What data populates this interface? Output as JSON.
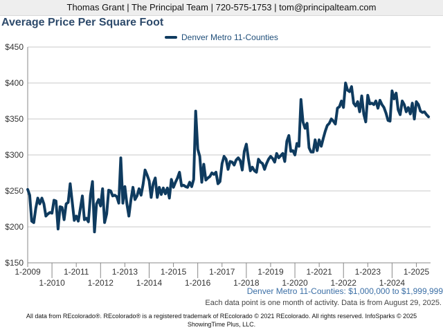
{
  "header": {
    "contact": "Thomas Grant | The Principal Team | 720-575-1753 | tom@principalteam.com"
  },
  "colors": {
    "series": "#0f3b5f",
    "title": "#2d4a6b",
    "header_bg": "#eeeeee"
  },
  "chart_data": {
    "type": "line",
    "title": "Average Price Per Square Foot",
    "xlabel": "",
    "ylabel": "",
    "ylim": [
      150,
      450
    ],
    "yticks": [
      150,
      200,
      250,
      300,
      350,
      400,
      450
    ],
    "ytick_labels": [
      "$150",
      "$200",
      "$250",
      "$300",
      "$350",
      "$400",
      "$450"
    ],
    "xlim": [
      "2009-01",
      "2025-08"
    ],
    "xticks": [
      {
        "date": "2009-01",
        "label": "1-2009",
        "row": 0
      },
      {
        "date": "2010-01",
        "label": "1-2010",
        "row": 1
      },
      {
        "date": "2011-01",
        "label": "1-2011",
        "row": 0
      },
      {
        "date": "2012-01",
        "label": "1-2012",
        "row": 1
      },
      {
        "date": "2013-01",
        "label": "1-2013",
        "row": 0
      },
      {
        "date": "2014-01",
        "label": "1-2014",
        "row": 1
      },
      {
        "date": "2015-01",
        "label": "1-2015",
        "row": 0
      },
      {
        "date": "2016-01",
        "label": "1-2016",
        "row": 1
      },
      {
        "date": "2017-01",
        "label": "1-2017",
        "row": 0
      },
      {
        "date": "2018-01",
        "label": "1-2018",
        "row": 1
      },
      {
        "date": "2019-01",
        "label": "1-2019",
        "row": 0
      },
      {
        "date": "2020-01",
        "label": "1-2020",
        "row": 1
      },
      {
        "date": "2021-01",
        "label": "1-2021",
        "row": 0
      },
      {
        "date": "2022-01",
        "label": "1-2022",
        "row": 1
      },
      {
        "date": "2023-01",
        "label": "1-2023",
        "row": 0
      },
      {
        "date": "2024-01",
        "label": "1-2024",
        "row": 1
      },
      {
        "date": "2025-01",
        "label": "1-2025",
        "row": 0
      }
    ],
    "grid": true,
    "legend_position": "top-center",
    "series": [
      {
        "name": "Denver Metro 11-Counties",
        "points": [
          [
            "2009-01",
            252
          ],
          [
            "2009-02",
            244
          ],
          [
            "2009-03",
            208
          ],
          [
            "2009-04",
            206
          ],
          [
            "2009-05",
            226
          ],
          [
            "2009-06",
            240
          ],
          [
            "2009-07",
            232
          ],
          [
            "2009-08",
            240
          ],
          [
            "2009-09",
            232
          ],
          [
            "2009-10",
            215
          ],
          [
            "2009-11",
            218
          ],
          [
            "2009-12",
            220
          ],
          [
            "2010-01",
            219
          ],
          [
            "2010-02",
            237
          ],
          [
            "2010-03",
            236
          ],
          [
            "2010-04",
            197
          ],
          [
            "2010-05",
            228
          ],
          [
            "2010-06",
            227
          ],
          [
            "2010-07",
            210
          ],
          [
            "2010-08",
            232
          ],
          [
            "2010-09",
            234
          ],
          [
            "2010-10",
            260
          ],
          [
            "2010-11",
            235
          ],
          [
            "2010-12",
            209
          ],
          [
            "2011-01",
            215
          ],
          [
            "2011-02",
            208
          ],
          [
            "2011-03",
            225
          ],
          [
            "2011-04",
            243
          ],
          [
            "2011-05",
            210
          ],
          [
            "2011-06",
            212
          ],
          [
            "2011-07",
            207
          ],
          [
            "2011-08",
            244
          ],
          [
            "2011-09",
            263
          ],
          [
            "2011-10",
            193
          ],
          [
            "2011-11",
            232
          ],
          [
            "2011-12",
            238
          ],
          [
            "2012-01",
            229
          ],
          [
            "2012-02",
            253
          ],
          [
            "2012-03",
            206
          ],
          [
            "2012-04",
            218
          ],
          [
            "2012-05",
            251
          ],
          [
            "2012-06",
            250
          ],
          [
            "2012-07",
            243
          ],
          [
            "2012-08",
            244
          ],
          [
            "2012-09",
            242
          ],
          [
            "2012-10",
            233
          ],
          [
            "2012-11",
            296
          ],
          [
            "2012-12",
            233
          ],
          [
            "2013-01",
            256
          ],
          [
            "2013-02",
            232
          ],
          [
            "2013-03",
            215
          ],
          [
            "2013-04",
            238
          ],
          [
            "2013-05",
            255
          ],
          [
            "2013-06",
            238
          ],
          [
            "2013-07",
            243
          ],
          [
            "2013-08",
            253
          ],
          [
            "2013-09",
            244
          ],
          [
            "2013-10",
            259
          ],
          [
            "2013-11",
            279
          ],
          [
            "2013-12",
            272
          ],
          [
            "2014-01",
            264
          ],
          [
            "2014-02",
            241
          ],
          [
            "2014-03",
            260
          ],
          [
            "2014-04",
            268
          ],
          [
            "2014-05",
            241
          ],
          [
            "2014-06",
            255
          ],
          [
            "2014-07",
            245
          ],
          [
            "2014-08",
            254
          ],
          [
            "2014-09",
            246
          ],
          [
            "2014-10",
            254
          ],
          [
            "2014-11",
            240
          ],
          [
            "2014-12",
            266
          ],
          [
            "2015-01",
            255
          ],
          [
            "2015-02",
            262
          ],
          [
            "2015-03",
            268
          ],
          [
            "2015-04",
            276
          ],
          [
            "2015-05",
            257
          ],
          [
            "2015-06",
            258
          ],
          [
            "2015-07",
            256
          ],
          [
            "2015-08",
            255
          ],
          [
            "2015-09",
            262
          ],
          [
            "2015-10",
            256
          ],
          [
            "2015-11",
            266
          ],
          [
            "2015-12",
            361
          ],
          [
            "2016-01",
            308
          ],
          [
            "2016-02",
            298
          ],
          [
            "2016-03",
            262
          ],
          [
            "2016-04",
            287
          ],
          [
            "2016-05",
            265
          ],
          [
            "2016-06",
            268
          ],
          [
            "2016-07",
            270
          ],
          [
            "2016-08",
            275
          ],
          [
            "2016-09",
            273
          ],
          [
            "2016-10",
            276
          ],
          [
            "2016-11",
            260
          ],
          [
            "2016-12",
            263
          ],
          [
            "2017-01",
            288
          ],
          [
            "2017-02",
            298
          ],
          [
            "2017-03",
            294
          ],
          [
            "2017-04",
            280
          ],
          [
            "2017-05",
            291
          ],
          [
            "2017-06",
            290
          ],
          [
            "2017-07",
            286
          ],
          [
            "2017-08",
            293
          ],
          [
            "2017-09",
            296
          ],
          [
            "2017-10",
            292
          ],
          [
            "2017-11",
            279
          ],
          [
            "2017-12",
            305
          ],
          [
            "2018-01",
            315
          ],
          [
            "2018-02",
            295
          ],
          [
            "2018-03",
            278
          ],
          [
            "2018-04",
            283
          ],
          [
            "2018-05",
            278
          ],
          [
            "2018-06",
            276
          ],
          [
            "2018-07",
            294
          ],
          [
            "2018-08",
            290
          ],
          [
            "2018-09",
            288
          ],
          [
            "2018-10",
            280
          ],
          [
            "2018-11",
            288
          ],
          [
            "2018-12",
            294
          ],
          [
            "2019-01",
            298
          ],
          [
            "2019-02",
            295
          ],
          [
            "2019-03",
            290
          ],
          [
            "2019-04",
            302
          ],
          [
            "2019-05",
            296
          ],
          [
            "2019-06",
            299
          ],
          [
            "2019-07",
            302
          ],
          [
            "2019-08",
            291
          ],
          [
            "2019-09",
            319
          ],
          [
            "2019-10",
            327
          ],
          [
            "2019-11",
            305
          ],
          [
            "2019-12",
            306
          ],
          [
            "2020-01",
            300
          ],
          [
            "2020-02",
            316
          ],
          [
            "2020-03",
            312
          ],
          [
            "2020-04",
            377
          ],
          [
            "2020-05",
            346
          ],
          [
            "2020-06",
            337
          ],
          [
            "2020-07",
            344
          ],
          [
            "2020-08",
            310
          ],
          [
            "2020-09",
            304
          ],
          [
            "2020-10",
            304
          ],
          [
            "2020-11",
            321
          ],
          [
            "2020-12",
            306
          ],
          [
            "2021-01",
            321
          ],
          [
            "2021-02",
            312
          ],
          [
            "2021-03",
            323
          ],
          [
            "2021-04",
            333
          ],
          [
            "2021-05",
            341
          ],
          [
            "2021-06",
            344
          ],
          [
            "2021-07",
            350
          ],
          [
            "2021-08",
            347
          ],
          [
            "2021-09",
            343
          ],
          [
            "2021-10",
            365
          ],
          [
            "2021-11",
            367
          ],
          [
            "2021-12",
            375
          ],
          [
            "2022-01",
            366
          ],
          [
            "2022-02",
            400
          ],
          [
            "2022-03",
            390
          ],
          [
            "2022-04",
            388
          ],
          [
            "2022-05",
            395
          ],
          [
            "2022-06",
            372
          ],
          [
            "2022-07",
            368
          ],
          [
            "2022-08",
            374
          ],
          [
            "2022-09",
            360
          ],
          [
            "2022-10",
            382
          ],
          [
            "2022-11",
            357
          ],
          [
            "2022-12",
            346
          ],
          [
            "2023-01",
            383
          ],
          [
            "2023-02",
            371
          ],
          [
            "2023-03",
            372
          ],
          [
            "2023-04",
            370
          ],
          [
            "2023-05",
            375
          ],
          [
            "2023-06",
            365
          ],
          [
            "2023-07",
            376
          ],
          [
            "2023-08",
            370
          ],
          [
            "2023-09",
            366
          ],
          [
            "2023-10",
            358
          ],
          [
            "2023-11",
            348
          ],
          [
            "2023-12",
            347
          ],
          [
            "2024-01",
            389
          ],
          [
            "2024-02",
            378
          ],
          [
            "2024-03",
            386
          ],
          [
            "2024-04",
            363
          ],
          [
            "2024-05",
            356
          ],
          [
            "2024-06",
            375
          ],
          [
            "2024-07",
            370
          ],
          [
            "2024-08",
            360
          ],
          [
            "2024-09",
            366
          ],
          [
            "2024-10",
            357
          ],
          [
            "2024-11",
            372
          ],
          [
            "2024-12",
            350
          ],
          [
            "2025-01",
            374
          ],
          [
            "2025-02",
            370
          ],
          [
            "2025-03",
            361
          ],
          [
            "2025-04",
            359
          ],
          [
            "2025-05",
            360
          ],
          [
            "2025-06",
            356
          ],
          [
            "2025-07",
            353
          ]
        ]
      }
    ]
  },
  "subtitle": {
    "range": "Denver Metro 11-Counties: $1,000,000 to $1,999,999",
    "note": "Each data point is one month of activity. Data is from August 29, 2025."
  },
  "footer": {
    "line1": "All data from REcolorado®. REcolorado® is a registered trademark of REcolorado © 2021 REcolorado. All rights reserved. InfoSparks © 2025",
    "line2": "ShowingTime Plus, LLC."
  }
}
